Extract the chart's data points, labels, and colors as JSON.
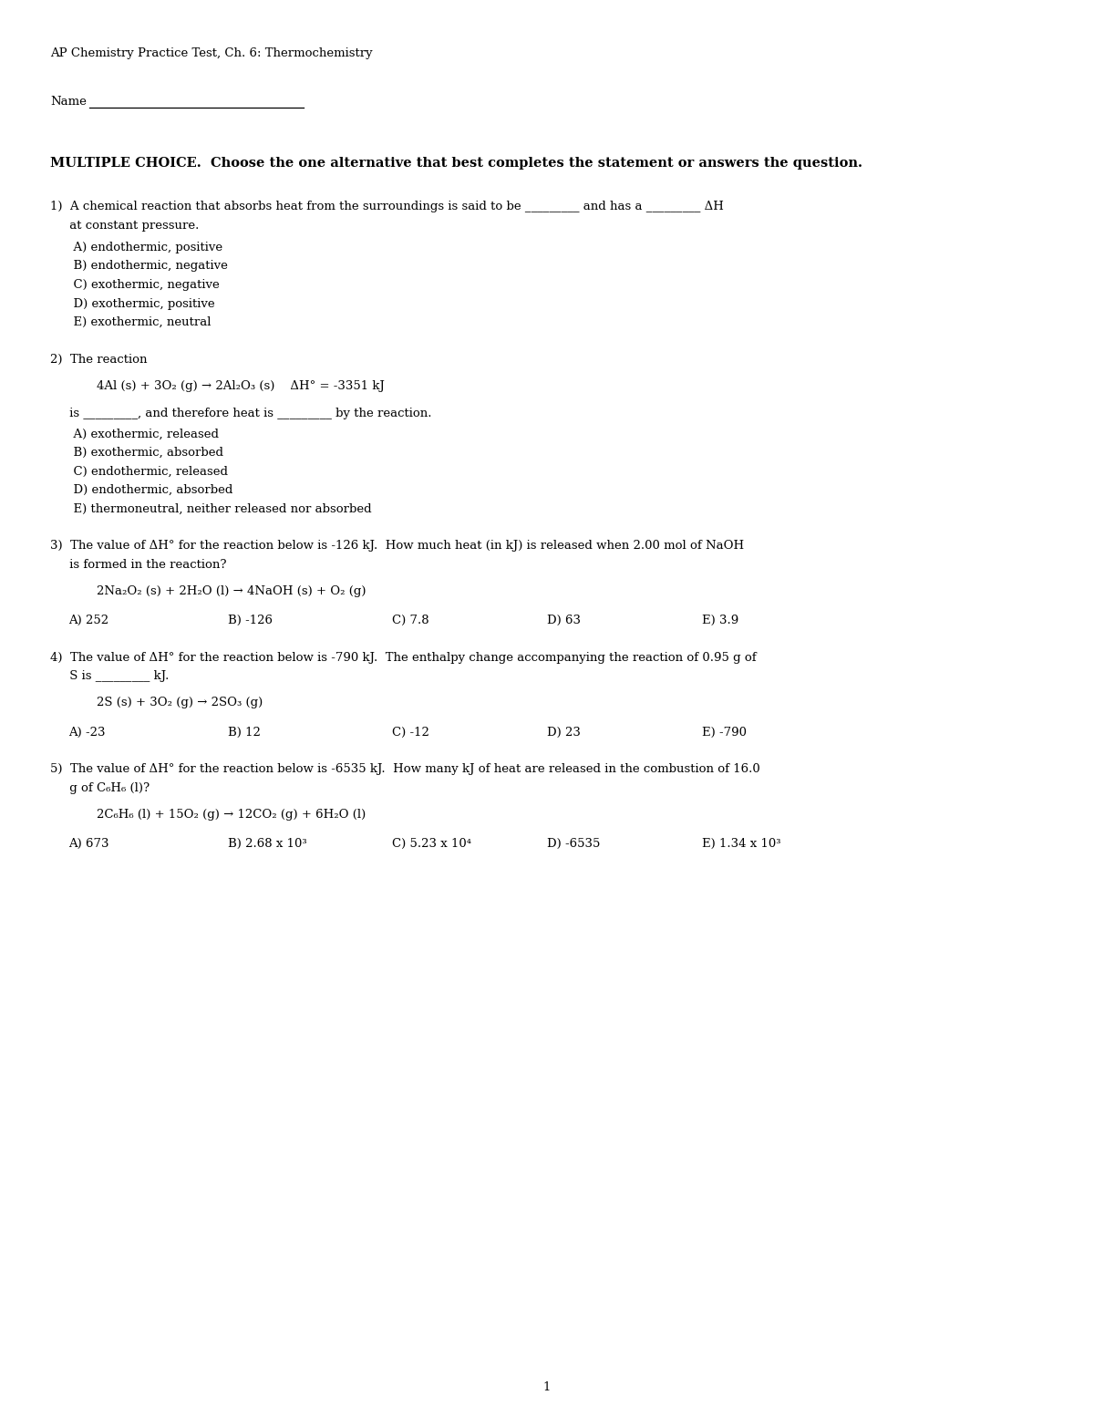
{
  "title": "AP Chemistry Practice Test, Ch. 6: Thermochemistry",
  "name_label": "Name",
  "section_header": "MULTIPLE CHOICE.  Choose the one alternative that best completes the statement or answers the question.",
  "q1_line1": "1)  A chemical reaction that absorbs heat from the surroundings is said to be _________ and has a _________ ΔH",
  "q1_line2": "     at constant pressure.",
  "q1_choices": [
    "      A) endothermic, positive",
    "      B) endothermic, negative",
    "      C) exothermic, negative",
    "      D) exothermic, positive",
    "      E) exothermic, neutral"
  ],
  "q2_line1": "2)  The reaction",
  "q2_eq": "            4Al (s) + 3O₂ (g) → 2Al₂O₃ (s)    ΔH° = -3351 kJ",
  "q2_line2": "     is _________, and therefore heat is _________ by the reaction.",
  "q2_choices": [
    "      A) exothermic, released",
    "      B) exothermic, absorbed",
    "      C) endothermic, released",
    "      D) endothermic, absorbed",
    "      E) thermoneutral, neither released nor absorbed"
  ],
  "q3_line1": "3)  The value of ΔH° for the reaction below is -126 kJ.  How much heat (in kJ) is released when 2.00 mol of NaOH",
  "q3_line2": "     is formed in the reaction?",
  "q3_eq": "            2Na₂O₂ (s) + 2H₂O (l) → 4NaOH (s) + O₂ (g)",
  "q3_choices_inline": [
    "A) 252",
    "B) -126",
    "C) 7.8",
    "D) 63",
    "E) 3.9"
  ],
  "q4_line1": "4)  The value of ΔH° for the reaction below is -790 kJ.  The enthalpy change accompanying the reaction of 0.95 g of",
  "q4_line2": "     S is _________ kJ.",
  "q4_eq": "            2S (s) + 3O₂ (g) → 2SO₃ (g)",
  "q4_choices_inline": [
    "A) -23",
    "B) 12",
    "C) -12",
    "D) 23",
    "E) -790"
  ],
  "q5_line1": "5)  The value of ΔH° for the reaction below is -6535 kJ.  How many kJ of heat are released in the combustion of 16.0",
  "q5_line2": "     g of C₆H₆ (l)?",
  "q5_eq": "            2C₆H₆ (l) + 15O₂ (g) → 12CO₂ (g) + 6H₂O (l)",
  "q5_choices_inline": [
    "A) 673",
    "B) 2.68 x 10³",
    "C) 5.23 x 10⁴",
    "D) -6535",
    "E) 1.34 x 10³"
  ],
  "page_number": "1",
  "background_color": "#ffffff",
  "text_color": "#000000"
}
